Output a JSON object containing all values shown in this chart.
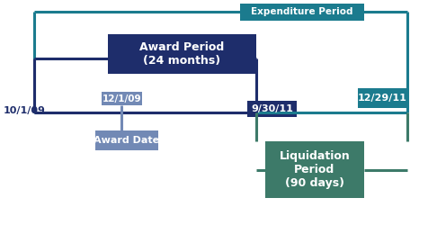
{
  "bg_color": "#ffffff",
  "expenditure_period_label": "Expenditure Period",
  "award_period_label": "Award Period\n(24 months)",
  "liquidation_period_label": "Liquidation\nPeriod\n(90 days)",
  "award_date_label": "Award Date",
  "date_start": "10/1/09",
  "date_award": "12/1/09",
  "date_end_award": "9/30/11",
  "date_end_exp": "12/29/11",
  "colors": {
    "expenditure_line": "#1b7b8e",
    "expenditure_box": "#1b7b8e",
    "award_box": "#1e2d6b",
    "award_line": "#1e2d6b",
    "liquidation_box": "#3d7a69",
    "liquidation_line": "#3d7a69",
    "award_date_box": "#7289b5",
    "award_date_line": "#7289b5",
    "date_label_color": "#1e2d6b",
    "text_white": "#ffffff"
  },
  "line_width": 2.2
}
